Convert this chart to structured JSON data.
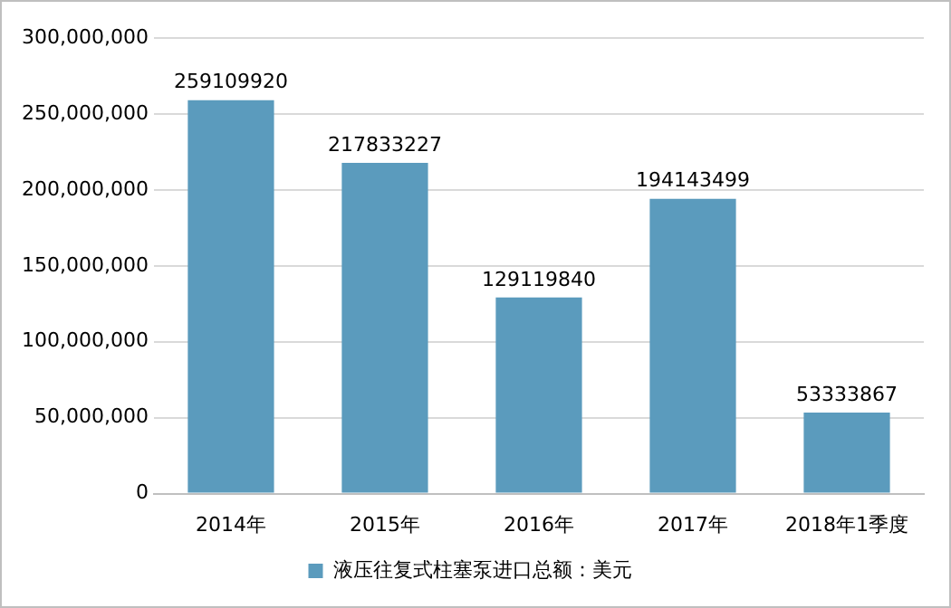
{
  "chart_data": {
    "type": "bar",
    "categories": [
      "2014年",
      "2015年",
      "2016年",
      "2017年",
      "2018年1季度"
    ],
    "series": [
      {
        "name": "液压往复式柱塞泵进口总额：美元",
        "color": "#5b9bbd",
        "values": [
          259109920,
          217833227,
          129119840,
          194143499,
          53333867
        ]
      }
    ],
    "ylim": [
      0,
      300000000
    ],
    "yticks": [
      0,
      {
        "value": 50000000,
        "label": "50,000,000"
      },
      {
        "value": 100000000,
        "label": "100,000,000"
      },
      {
        "value": 150000000,
        "label": "150,000,000"
      },
      {
        "value": 200000000,
        "label": "200,000,000"
      },
      {
        "value": 250000000,
        "label": "250,000,000"
      },
      {
        "value": 300000000,
        "label": "300,000,000"
      }
    ],
    "grid": "y",
    "legend": "bottom",
    "data_labels": true
  }
}
